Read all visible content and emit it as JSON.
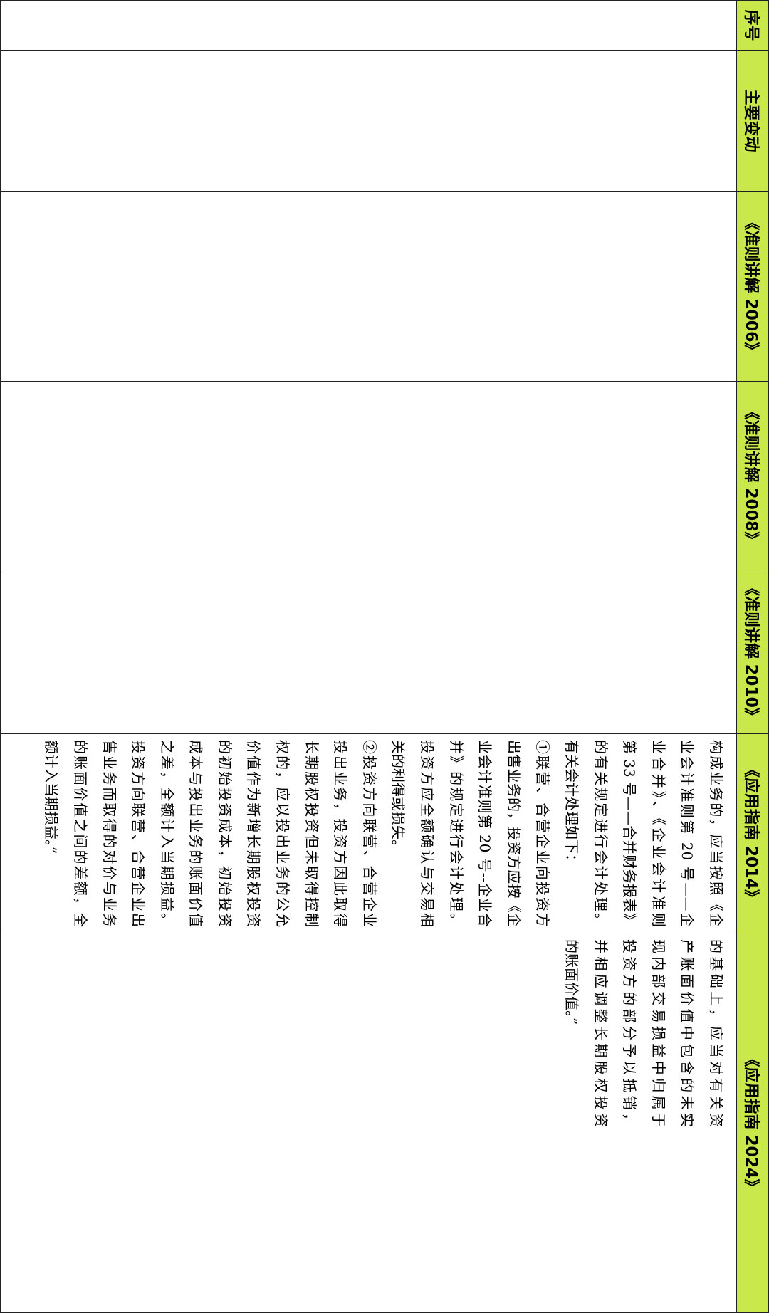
{
  "header_color": "#c8e84c",
  "headers": [
    "序号",
    "主要变动",
    "《准则讲解 2006》",
    "《准则讲解 2008》",
    "《准则讲解 2010》",
    "《应用指南 2014》",
    "《应用指南 2024》"
  ],
  "cells": {
    "guide_2014": [
      "构成业务的，应当按照《企",
      "业会计准则第 20 号——企",
      "业合并》、《企业会计准则",
      "第 33 号——合并财务报表》",
      "的有关规定进行会计处理。",
      "有关会计处理如下：",
      "①联营、合营企业向投资方",
      "出售业务的，投资方应按《企",
      "业会计准则第 20 号--企业合",
      "并》的规定进行会计处理。",
      "投资方应全额确认与交易相",
      "关的利得或损失。",
      "②投资方向联营、合营企业",
      "投出业务，投资方因此取得",
      "长期股权投资但未取得控制",
      "权的，应以投出业务的公允",
      "价值作为新增长期股权投资",
      "的初始投资成本，初始投资",
      "成本与投出业务的账面价值",
      "之差，全额计入当期损益。",
      "投资方向联营、合营企业出",
      "售业务而取得的对价与业务",
      "的账面价值之间的差额，全",
      "额计入当期损益。”"
    ],
    "guide_2024": [
      "的基础上，应当对有关资",
      "产账面价值中包含的未实",
      "现内部交易损益中归属于",
      "投资方的部分予以抵销，",
      "并相应调整长期股权投资",
      "的账面价值。”"
    ]
  }
}
